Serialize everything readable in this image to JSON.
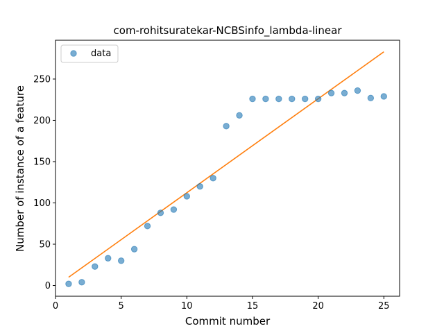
{
  "chart_data": {
    "type": "scatter",
    "title": "com-rohitsuratekar-NCBSinfo_lambda-linear",
    "xlabel": "Commit number",
    "ylabel": "Number of instance of a feature",
    "xlim": [
      0,
      26.2
    ],
    "ylim": [
      -13,
      297
    ],
    "xticks": [
      0,
      5,
      10,
      15,
      20,
      25
    ],
    "yticks": [
      0,
      50,
      100,
      150,
      200,
      250
    ],
    "xtick_labels": [
      "0",
      "5",
      "10",
      "15",
      "20",
      "25"
    ],
    "ytick_labels": [
      "0",
      "50",
      "100",
      "150",
      "200",
      "250"
    ],
    "legend": {
      "position": "top-left",
      "entries": [
        "data"
      ]
    },
    "series": [
      {
        "name": "data",
        "kind": "scatter",
        "color": "#1f77b4",
        "x": [
          1,
          2,
          3,
          4,
          5,
          6,
          7,
          8,
          9,
          10,
          11,
          12,
          13,
          14,
          15,
          16,
          17,
          18,
          19,
          20,
          21,
          22,
          23,
          24,
          25
        ],
        "y": [
          2,
          4,
          23,
          33,
          30,
          44,
          72,
          88,
          92,
          108,
          120,
          130,
          193,
          206,
          226,
          226,
          226,
          226,
          226,
          226,
          233,
          233,
          236,
          227,
          229
        ]
      },
      {
        "kind": "line",
        "color": "#ff7f0e",
        "x": [
          1,
          25
        ],
        "y": [
          10,
          283
        ]
      }
    ]
  }
}
